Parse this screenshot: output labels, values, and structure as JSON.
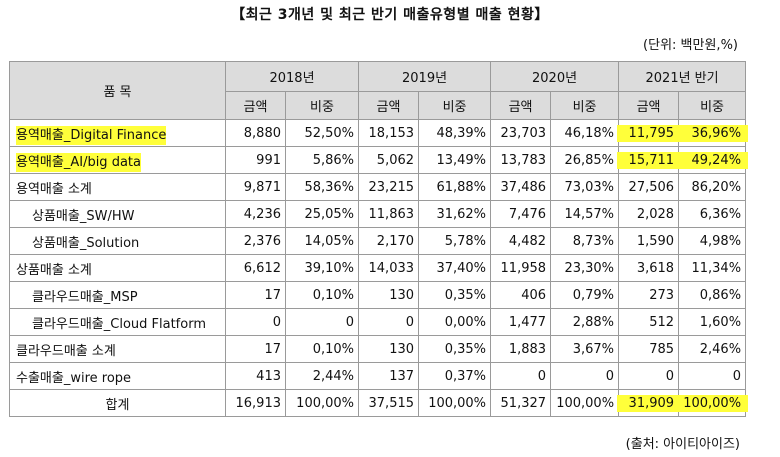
{
  "title": "【최근 3개년 및 최근 반기 매출유형별 매출 현황】",
  "unit": "(단위: 백만원,%)",
  "source": "(출처: 아이티아이즈)",
  "header": {
    "item": "품 목",
    "periods": [
      "2018년",
      "2019년",
      "2020년",
      "2021년 반기"
    ],
    "amount": "금액",
    "ratio": "비중"
  },
  "rows": [
    {
      "label": "용역매출_Digital Finance",
      "values": [
        "8,880",
        "52,50%",
        "18,153",
        "48,39%",
        "23,703",
        "46,18%",
        "11,795",
        "36,96%"
      ]
    },
    {
      "label": "용역매출_AI/big data",
      "values": [
        "991",
        "5,86%",
        "5,062",
        "13,49%",
        "13,783",
        "26,85%",
        "15,711",
        "49,24%"
      ]
    },
    {
      "label": "용역매출 소계",
      "values": [
        "9,871",
        "58,36%",
        "23,215",
        "61,88%",
        "37,486",
        "73,03%",
        "27,506",
        "86,20%"
      ]
    },
    {
      "label": "상품매출_SW/HW",
      "values": [
        "4,236",
        "25,05%",
        "11,863",
        "31,62%",
        "7,476",
        "14,57%",
        "2,028",
        "6,36%"
      ]
    },
    {
      "label": "상품매출_Solution",
      "values": [
        "2,376",
        "14,05%",
        "2,170",
        "5,78%",
        "4,482",
        "8,73%",
        "1,590",
        "4,98%"
      ]
    },
    {
      "label": "상품매출 소계",
      "values": [
        "6,612",
        "39,10%",
        "14,033",
        "37,40%",
        "11,958",
        "23,30%",
        "3,618",
        "11,34%"
      ]
    },
    {
      "label": "클라우드매출_MSP",
      "values": [
        "17",
        "0,10%",
        "130",
        "0,35%",
        "406",
        "0,79%",
        "273",
        "0,86%"
      ]
    },
    {
      "label": "클라우드매출_Cloud Flatform",
      "values": [
        "0",
        "0",
        "0",
        "0,00%",
        "1,477",
        "2,88%",
        "512",
        "1,60%"
      ]
    },
    {
      "label": "클라우드매출 소계",
      "values": [
        "17",
        "0,10%",
        "130",
        "0,35%",
        "1,883",
        "3,67%",
        "785",
        "2,46%"
      ]
    },
    {
      "label": "수출매출_wire rope",
      "values": [
        "413",
        "2,44%",
        "137",
        "0,37%",
        "0",
        "0",
        "0",
        "0"
      ]
    },
    {
      "label": "합계",
      "values": [
        "16,913",
        "100,00%",
        "37,515",
        "100,00%",
        "51,327",
        "100,00%",
        "31,909",
        "100,00%"
      ]
    }
  ],
  "highlight_color": "#ffff3a"
}
